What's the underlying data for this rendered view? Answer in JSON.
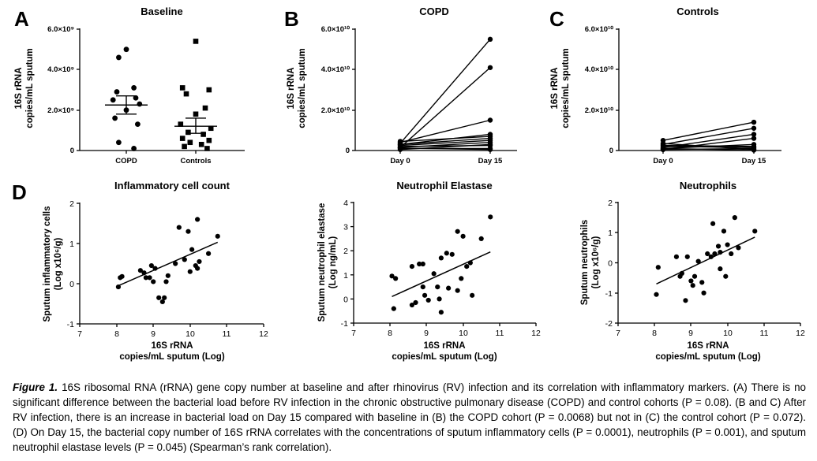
{
  "panels": {
    "A": {
      "letter": "A",
      "title": "Baseline",
      "ylabel1": "16S rRNA",
      "ylabel2": "copies/mL sputum",
      "yticks": [
        "6.0×10⁹",
        "4.0×10⁹",
        "2.0×10⁹",
        "0"
      ],
      "xticks": [
        "COPD",
        "Controls"
      ]
    },
    "B": {
      "letter": "B",
      "title": "COPD",
      "ylabel1": "16S rRNA",
      "ylabel2": "copies/mL sputum",
      "yticks": [
        "6.0×10¹⁰",
        "4.0×10¹⁰",
        "2.0×10¹⁰",
        "0"
      ],
      "xticks": [
        "Day 0",
        "Day 15"
      ]
    },
    "C": {
      "letter": "C",
      "title": "Controls",
      "ylabel1": "16S rRNA",
      "ylabel2": "copies/mL sputum",
      "yticks": [
        "6.0×10¹⁰",
        "4.0×10¹⁰",
        "2.0×10¹⁰",
        "0"
      ],
      "xticks": [
        "Day 0",
        "Day 15"
      ]
    },
    "D": {
      "letter": "D"
    },
    "D1": {
      "title": "Inflammatory cell count",
      "ylabel1": "Sputum inflammatory cells",
      "ylabel2": "(Log x10⁶/g)",
      "xlabel1": "16S rRNA",
      "xlabel2": "copies/mL sputum (Log)",
      "yticks": [
        "2",
        "1",
        "0",
        "-1"
      ],
      "xticks": [
        "7",
        "8",
        "9",
        "10",
        "11",
        "12"
      ]
    },
    "D2": {
      "title": "Neutrophil Elastase",
      "ylabel1": "Sputum neutrophil elastase",
      "ylabel2": "(Log ng/mL)",
      "xlabel1": "16S rRNA",
      "xlabel2": "copies/mL sputum (Log)",
      "yticks": [
        "4",
        "3",
        "2",
        "1",
        "0",
        "-1"
      ],
      "xticks": [
        "7",
        "8",
        "9",
        "10",
        "11",
        "12"
      ]
    },
    "D3": {
      "title": "Neutrophils",
      "ylabel1": "Sputum neutrophils",
      "ylabel2": "(Log x10⁶/g)",
      "xlabel1": "16S rRNA",
      "xlabel2": "copies/mL sputum (Log)",
      "yticks": [
        "2",
        "1",
        "0",
        "-1",
        "-2"
      ],
      "xticks": [
        "7",
        "8",
        "9",
        "10",
        "11",
        "12"
      ]
    }
  },
  "caption": {
    "label": "Figure 1.",
    "text": " 16S ribosomal RNA (rRNA) gene copy number at baseline and after rhinovirus (RV) infection and its correlation with inflammatory markers. (A) There is no significant difference between the bacterial load before RV infection in the chronic obstructive pulmonary disease (COPD) and control cohorts (P = 0.08). (B and C) After RV infection, there is an increase in bacterial load on Day 15 compared with baseline in (B) the COPD cohort (P = 0.0068) but not in (C) the control cohort (P = 0.072). (D) On Day 15, the bacterial copy number of 16S rRNA correlates with the concentrations of sputum inflammatory cells (P = 0.0001), neutrophils (P = 0.001), and sputum neutrophil elastase levels (P = 0.045) (Spearman’s rank correlation)."
  },
  "chart_data": [
    {
      "type": "scatter",
      "panel": "A",
      "title": "Baseline",
      "ylabel": "16S rRNA copies/mL sputum",
      "ylim": [
        0,
        6000000000.0
      ],
      "categories": [
        "COPD",
        "Controls"
      ],
      "series": [
        {
          "name": "COPD",
          "marker": "circle",
          "values": [
            5000000000.0,
            4600000000.0,
            3100000000.0,
            2900000000.0,
            2600000000.0,
            2500000000.0,
            2300000000.0,
            2000000000.0,
            1600000000.0,
            1300000000.0,
            400000000.0,
            100000000.0
          ],
          "mean": 2250000000.0,
          "sem_low": 1800000000.0,
          "sem_high": 2700000000.0
        },
        {
          "name": "Controls",
          "marker": "square",
          "values": [
            5400000000.0,
            3100000000.0,
            3000000000.0,
            2800000000.0,
            2100000000.0,
            1800000000.0,
            1300000000.0,
            1100000000.0,
            900000000.0,
            800000000.0,
            600000000.0,
            500000000.0,
            400000000.0,
            300000000.0,
            200000000.0,
            100000000.0
          ],
          "mean": 1200000000.0,
          "sem_low": 850000000.0,
          "sem_high": 1600000000.0
        }
      ]
    },
    {
      "type": "line",
      "panel": "B",
      "title": "COPD",
      "ylabel": "16S rRNA copies/mL sputum",
      "ylim": [
        0,
        60000000000.0
      ],
      "x": [
        "Day 0",
        "Day 15"
      ],
      "pairs": [
        [
          3500000000.0,
          55000000000.0
        ],
        [
          1500000000.0,
          41000000000.0
        ],
        [
          4000000000.0,
          15000000000.0
        ],
        [
          3000000000.0,
          8000000000.0
        ],
        [
          4500000000.0,
          7000000000.0
        ],
        [
          3000000000.0,
          6000000000.0
        ],
        [
          2500000000.0,
          5000000000.0
        ],
        [
          1500000000.0,
          4000000000.0
        ],
        [
          500000000.0,
          3000000000.0
        ],
        [
          2000000000.0,
          2500000000.0
        ],
        [
          1000000000.0,
          1000000000.0
        ],
        [
          1200000000.0,
          500000000.0
        ]
      ]
    },
    {
      "type": "line",
      "panel": "C",
      "title": "Controls",
      "ylabel": "16S rRNA copies/mL sputum",
      "ylim": [
        0,
        60000000000.0
      ],
      "x": [
        "Day 0",
        "Day 15"
      ],
      "pairs": [
        [
          5000000000.0,
          14000000000.0
        ],
        [
          3000000000.0,
          11000000000.0
        ],
        [
          1500000000.0,
          8000000000.0
        ],
        [
          500000000.0,
          6000000000.0
        ],
        [
          1000000000.0,
          3000000000.0
        ],
        [
          2500000000.0,
          2000000000.0
        ],
        [
          2000000000.0,
          1500000000.0
        ],
        [
          500000000.0,
          1000000000.0
        ],
        [
          3500000000.0,
          500000000.0
        ],
        [
          1000000000.0,
          200000000.0
        ]
      ]
    },
    {
      "type": "scatter",
      "panel": "D1",
      "title": "Inflammatory cell count",
      "xlabel": "16S rRNA copies/mL sputum (Log)",
      "ylabel": "Sputum inflammatory cells (Log x10⁶/g)",
      "xlim": [
        7,
        12
      ],
      "ylim": [
        -1,
        2
      ],
      "points": [
        [
          8.05,
          -0.08
        ],
        [
          8.1,
          0.15
        ],
        [
          8.15,
          0.18
        ],
        [
          8.65,
          0.33
        ],
        [
          8.75,
          0.27
        ],
        [
          8.8,
          0.15
        ],
        [
          8.9,
          0.15
        ],
        [
          8.95,
          0.45
        ],
        [
          9.05,
          0.38
        ],
        [
          9.0,
          0.05
        ],
        [
          9.15,
          -0.35
        ],
        [
          9.25,
          -0.45
        ],
        [
          9.3,
          -0.35
        ],
        [
          9.35,
          0.05
        ],
        [
          9.4,
          0.2
        ],
        [
          9.6,
          0.5
        ],
        [
          9.7,
          1.4
        ],
        [
          9.85,
          0.6
        ],
        [
          9.95,
          1.3
        ],
        [
          10.0,
          0.3
        ],
        [
          10.05,
          0.85
        ],
        [
          10.15,
          0.45
        ],
        [
          10.2,
          1.6
        ],
        [
          10.25,
          0.55
        ],
        [
          10.5,
          0.75
        ],
        [
          10.75,
          1.18
        ],
        [
          10.2,
          0.38
        ]
      ],
      "fit": [
        [
          8.05,
          -0.05
        ],
        [
          10.75,
          1.03
        ]
      ]
    },
    {
      "type": "scatter",
      "panel": "D2",
      "title": "Neutrophil Elastase",
      "xlabel": "16S rRNA copies/mL sputum (Log)",
      "ylabel": "Sputum neutrophil elastase (Log ng/mL)",
      "xlim": [
        7,
        12
      ],
      "ylim": [
        -1,
        4
      ],
      "points": [
        [
          8.05,
          0.95
        ],
        [
          8.15,
          0.85
        ],
        [
          8.1,
          -0.4
        ],
        [
          8.6,
          -0.25
        ],
        [
          8.6,
          1.35
        ],
        [
          8.7,
          -0.15
        ],
        [
          8.8,
          1.45
        ],
        [
          8.9,
          1.45
        ],
        [
          8.9,
          0.5
        ],
        [
          8.95,
          0.15
        ],
        [
          9.05,
          -0.05
        ],
        [
          9.2,
          1.05
        ],
        [
          9.3,
          0.5
        ],
        [
          9.35,
          0.0
        ],
        [
          9.4,
          -0.55
        ],
        [
          9.4,
          1.7
        ],
        [
          9.55,
          1.9
        ],
        [
          9.6,
          0.45
        ],
        [
          9.7,
          1.85
        ],
        [
          9.85,
          2.8
        ],
        [
          9.95,
          0.85
        ],
        [
          10.0,
          2.6
        ],
        [
          10.1,
          1.35
        ],
        [
          10.2,
          1.5
        ],
        [
          10.25,
          0.15
        ],
        [
          10.5,
          2.5
        ],
        [
          10.75,
          3.4
        ],
        [
          9.85,
          0.35
        ]
      ],
      "fit": [
        [
          8.05,
          0.1
        ],
        [
          10.75,
          1.95
        ]
      ]
    },
    {
      "type": "scatter",
      "panel": "D3",
      "title": "Neutrophils",
      "xlabel": "16S rRNA copies/mL sputum (Log)",
      "ylabel": "Sputum neutrophils (Log x10⁶/g)",
      "xlim": [
        7,
        12
      ],
      "ylim": [
        -2,
        2
      ],
      "points": [
        [
          8.05,
          -1.05
        ],
        [
          8.1,
          -0.15
        ],
        [
          8.6,
          0.2
        ],
        [
          8.7,
          -0.45
        ],
        [
          8.75,
          -0.35
        ],
        [
          8.85,
          -1.25
        ],
        [
          8.9,
          0.2
        ],
        [
          9.0,
          -0.6
        ],
        [
          9.05,
          -0.75
        ],
        [
          9.1,
          -0.45
        ],
        [
          9.2,
          0.05
        ],
        [
          9.3,
          -0.65
        ],
        [
          9.35,
          -1.0
        ],
        [
          9.45,
          0.3
        ],
        [
          9.55,
          0.2
        ],
        [
          9.6,
          1.3
        ],
        [
          9.65,
          0.3
        ],
        [
          9.75,
          0.55
        ],
        [
          9.8,
          0.35
        ],
        [
          9.9,
          1.05
        ],
        [
          9.95,
          -0.45
        ],
        [
          10.0,
          0.6
        ],
        [
          10.1,
          0.3
        ],
        [
          10.2,
          1.5
        ],
        [
          10.3,
          0.5
        ],
        [
          10.75,
          1.05
        ],
        [
          9.8,
          -0.2
        ]
      ],
      "fit": [
        [
          8.05,
          -0.7
        ],
        [
          10.75,
          0.85
        ]
      ]
    }
  ]
}
